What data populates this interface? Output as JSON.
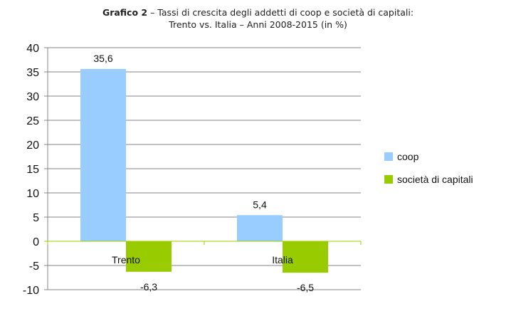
{
  "title": {
    "prefix": "Grafico 2",
    "main": " – Tassi di crescita degli addetti di coop e società di capitali:",
    "line2": "Trento vs. Italia – Anni 2008-2015 (in %)"
  },
  "chart_data": {
    "type": "bar",
    "categories": [
      "Trento",
      "Italia"
    ],
    "series": [
      {
        "name": "coop",
        "values": [
          35.6,
          5.4
        ],
        "labels": [
          "35,6",
          "5,4"
        ],
        "color": "#99ccff"
      },
      {
        "name": "società di capitali",
        "values": [
          -6.3,
          -6.5
        ],
        "labels": [
          "-6,3",
          "-6,5"
        ],
        "color": "#99cc00"
      }
    ],
    "ylim": [
      -10,
      40
    ],
    "yticks": [
      -10,
      -5,
      0,
      5,
      10,
      15,
      20,
      25,
      30,
      35,
      40
    ],
    "grid": true,
    "legend": "right",
    "gridColor": "#868686",
    "zeroLineColor": "#99cc00"
  }
}
